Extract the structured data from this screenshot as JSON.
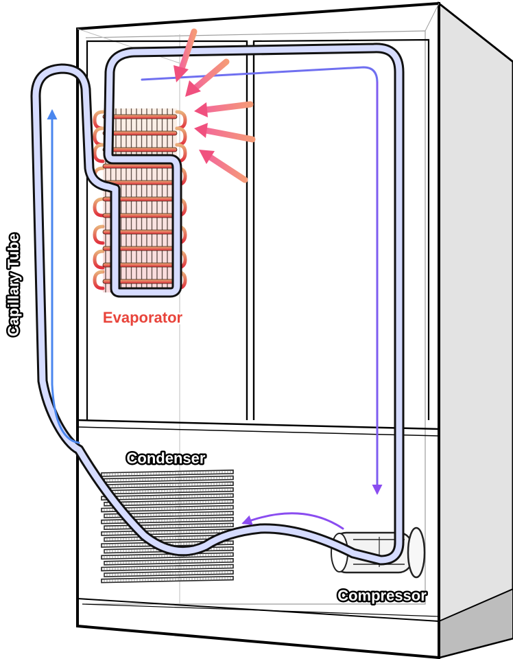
{
  "labels": {
    "evaporator": "Evaporator",
    "condenser": "Condenser",
    "compressor": "Compressor",
    "capillary_tube": "Capillary Tube"
  },
  "colors": {
    "outline": "#000000",
    "cabinet_fill": "#ffffff",
    "side_panel": "#e3e3e3",
    "tube_fill": "#d6dcff",
    "tube_outline": "#111111",
    "flow_blue": "#4a86ee",
    "flow_purple": "#8a4cf0",
    "heat_arrow_start": "#f36a98",
    "heat_arrow_end": "#f59a77",
    "evaporator_label": "#e8443b",
    "evap_gradient_top": "#e9b07a",
    "evap_gradient_bottom": "#e0303c",
    "condenser_fin": "#222222"
  }
}
